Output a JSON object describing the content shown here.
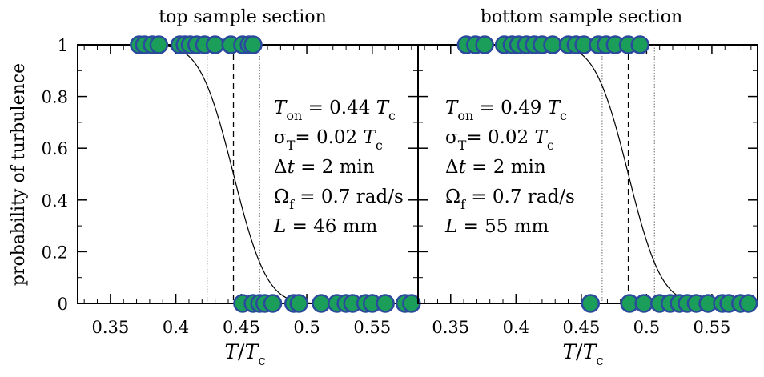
{
  "chart_data": [
    {
      "type": "scatter",
      "title": "top sample section",
      "ylabel": "probability of turbulence",
      "xlabel": "T/Tc",
      "xlim": [
        0.325,
        0.585
      ],
      "ylim": [
        0,
        1
      ],
      "x_ticks": [
        "0.35",
        "0.4",
        "0.45",
        "0.5",
        "0.55"
      ],
      "y_ticks": [
        "0",
        "0.2",
        "0.4",
        "0.6",
        "0.8",
        "1"
      ],
      "marker_fill": "#1a9e5a",
      "marker_edge": "#2b4a9e",
      "series": [
        {
          "points": [
            {
              "x": 0.372,
              "y": 1
            },
            {
              "x": 0.376,
              "y": 1
            },
            {
              "x": 0.382,
              "y": 1
            },
            {
              "x": 0.387,
              "y": 1
            },
            {
              "x": 0.403,
              "y": 1
            },
            {
              "x": 0.407,
              "y": 1
            },
            {
              "x": 0.411,
              "y": 1
            },
            {
              "x": 0.416,
              "y": 1
            },
            {
              "x": 0.422,
              "y": 1
            },
            {
              "x": 0.43,
              "y": 1
            },
            {
              "x": 0.442,
              "y": 1
            },
            {
              "x": 0.451,
              "y": 1
            },
            {
              "x": 0.456,
              "y": 1
            },
            {
              "x": 0.459,
              "y": 1
            },
            {
              "x": 0.451,
              "y": 0
            },
            {
              "x": 0.459,
              "y": 0
            },
            {
              "x": 0.464,
              "y": 0
            },
            {
              "x": 0.468,
              "y": 0
            },
            {
              "x": 0.474,
              "y": 0
            },
            {
              "x": 0.49,
              "y": 0
            },
            {
              "x": 0.494,
              "y": 0
            },
            {
              "x": 0.511,
              "y": 0
            },
            {
              "x": 0.523,
              "y": 0
            },
            {
              "x": 0.53,
              "y": 0
            },
            {
              "x": 0.535,
              "y": 0
            },
            {
              "x": 0.545,
              "y": 0
            },
            {
              "x": 0.55,
              "y": 0
            },
            {
              "x": 0.56,
              "y": 0
            },
            {
              "x": 0.575,
              "y": 0
            },
            {
              "x": 0.58,
              "y": 0
            }
          ]
        }
      ],
      "fit": {
        "T_on": 0.444,
        "sigma": 0.02
      },
      "vlines_dashed": [
        0.444
      ],
      "vlines_dotted": [
        0.424,
        0.464
      ],
      "annotations": [
        {
          "sym": "T",
          "sub": "on",
          "eq": " = 0.44 ",
          "sym2": "T",
          "sub2": "c"
        },
        {
          "sym": "σ",
          "sub": "T",
          "eq": "= 0.02 ",
          "sym2": "T",
          "sub2": "c"
        },
        {
          "sym": "Δt",
          "sub": "",
          "eq": " = 2 min",
          "sym2": "",
          "sub2": ""
        },
        {
          "sym": "Ω",
          "sub": "f",
          "eq": " = 0.7 rad/s",
          "sym2": "",
          "sub2": ""
        },
        {
          "sym": "L",
          "sub": "",
          "eq": " = 46 mm",
          "sym2": "",
          "sub2": ""
        }
      ]
    },
    {
      "type": "scatter",
      "title": "bottom sample section",
      "xlabel": "T/Tc",
      "xlim": [
        0.325,
        0.585
      ],
      "ylim": [
        0,
        1
      ],
      "x_ticks": [
        "0.35",
        "0.4",
        "0.45",
        "0.5",
        "0.55"
      ],
      "marker_fill": "#1a9e5a",
      "marker_edge": "#2b4a9e",
      "series": [
        {
          "points": [
            {
              "x": 0.362,
              "y": 1
            },
            {
              "x": 0.369,
              "y": 1
            },
            {
              "x": 0.376,
              "y": 1
            },
            {
              "x": 0.391,
              "y": 1
            },
            {
              "x": 0.397,
              "y": 1
            },
            {
              "x": 0.402,
              "y": 1
            },
            {
              "x": 0.408,
              "y": 1
            },
            {
              "x": 0.414,
              "y": 1
            },
            {
              "x": 0.42,
              "y": 1
            },
            {
              "x": 0.428,
              "y": 1
            },
            {
              "x": 0.44,
              "y": 1
            },
            {
              "x": 0.446,
              "y": 1
            },
            {
              "x": 0.452,
              "y": 1
            },
            {
              "x": 0.463,
              "y": 1
            },
            {
              "x": 0.469,
              "y": 1
            },
            {
              "x": 0.476,
              "y": 1
            },
            {
              "x": 0.486,
              "y": 1
            },
            {
              "x": 0.495,
              "y": 1
            },
            {
              "x": 0.457,
              "y": 0
            },
            {
              "x": 0.487,
              "y": 0
            },
            {
              "x": 0.498,
              "y": 0
            },
            {
              "x": 0.51,
              "y": 0
            },
            {
              "x": 0.518,
              "y": 0
            },
            {
              "x": 0.525,
              "y": 0
            },
            {
              "x": 0.531,
              "y": 0
            },
            {
              "x": 0.538,
              "y": 0
            },
            {
              "x": 0.547,
              "y": 0
            },
            {
              "x": 0.558,
              "y": 0
            },
            {
              "x": 0.563,
              "y": 0
            },
            {
              "x": 0.572,
              "y": 0
            },
            {
              "x": 0.578,
              "y": 0
            }
          ]
        }
      ],
      "fit": {
        "T_on": 0.486,
        "sigma": 0.02
      },
      "vlines_dashed": [
        0.486
      ],
      "vlines_dotted": [
        0.466,
        0.506
      ],
      "annotations": [
        {
          "sym": "T",
          "sub": "on",
          "eq": " = 0.49 ",
          "sym2": "T",
          "sub2": "c"
        },
        {
          "sym": "σ",
          "sub": "T",
          "eq": "= 0.02 ",
          "sym2": "T",
          "sub2": "c"
        },
        {
          "sym": "Δt",
          "sub": "",
          "eq": " = 2 min",
          "sym2": "",
          "sub2": ""
        },
        {
          "sym": "Ω",
          "sub": "f",
          "eq": " = 0.7 rad/s",
          "sym2": "",
          "sub2": ""
        },
        {
          "sym": "L",
          "sub": "",
          "eq": " = 55 mm",
          "sym2": "",
          "sub2": ""
        }
      ]
    }
  ]
}
